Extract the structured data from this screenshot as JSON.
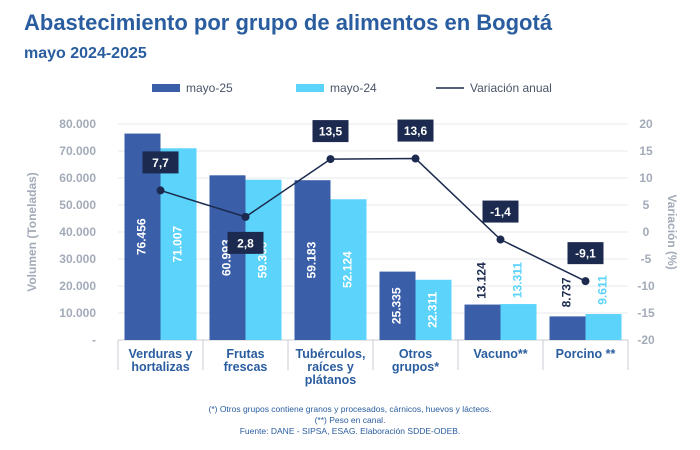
{
  "title": "Abastecimiento por grupo de alimentos en Bogotá",
  "subtitle": "mayo 2024-2025",
  "colors": {
    "mayo25": "#3a5ea8",
    "mayo24": "#5bd3fa",
    "line": "#1b2a4e",
    "axis_text": "#a3aab8",
    "category_text": "#2a5d9f",
    "grid": "#e6e9ee",
    "label_box": "#1b2a4e"
  },
  "chart_data": {
    "type": "bar",
    "categories": [
      [
        "Verduras y",
        "hortalizas"
      ],
      [
        "Frutas",
        "frescas"
      ],
      [
        "Tubérculos,",
        "raíces y",
        "plátanos"
      ],
      [
        "Otros",
        "grupos*"
      ],
      [
        "Vacuno**"
      ],
      [
        "Porcino **"
      ]
    ],
    "series": [
      {
        "name": "mayo-25",
        "values": [
          76456,
          60993,
          59183,
          25335,
          13124,
          8737
        ],
        "labels": [
          "76.456",
          "60.993",
          "59.183",
          "25.335",
          "13.124",
          "8.737"
        ]
      },
      {
        "name": "mayo-24",
        "values": [
          71007,
          59360,
          52124,
          22311,
          13311,
          9611
        ],
        "labels": [
          "71.007",
          "59.360",
          "52.124",
          "22.311",
          "13.311",
          "9.611"
        ]
      }
    ],
    "line_series": {
      "name": "Variación anual",
      "values": [
        7.7,
        2.8,
        13.5,
        13.6,
        -1.4,
        -9.1
      ],
      "labels": [
        "7,7",
        "2,8",
        "13,5",
        "13,6",
        "-1,4",
        "-9,1"
      ]
    },
    "ylabel": "Volumen (Toneladas)",
    "y2label": "Variación (%)",
    "ylim": [
      0,
      80000
    ],
    "y2lim": [
      -20,
      20
    ],
    "yticks": [
      "-",
      "10.000",
      "20.000",
      "30.000",
      "40.000",
      "50.000",
      "60.000",
      "70.000",
      "80.000"
    ],
    "y2ticks": [
      "-20",
      "-15",
      "-10",
      "-5",
      "0",
      "5",
      "10",
      "15",
      "20"
    ],
    "legend_position": "top"
  },
  "footnotes": [
    "(*) Otros grupos contiene granos y procesados, cárnicos, huevos y lácteos.",
    "(**) Peso en canal.",
    "Fuente: DANE - SIPSA, ESAG. Elaboración SDDE-ODEB."
  ]
}
